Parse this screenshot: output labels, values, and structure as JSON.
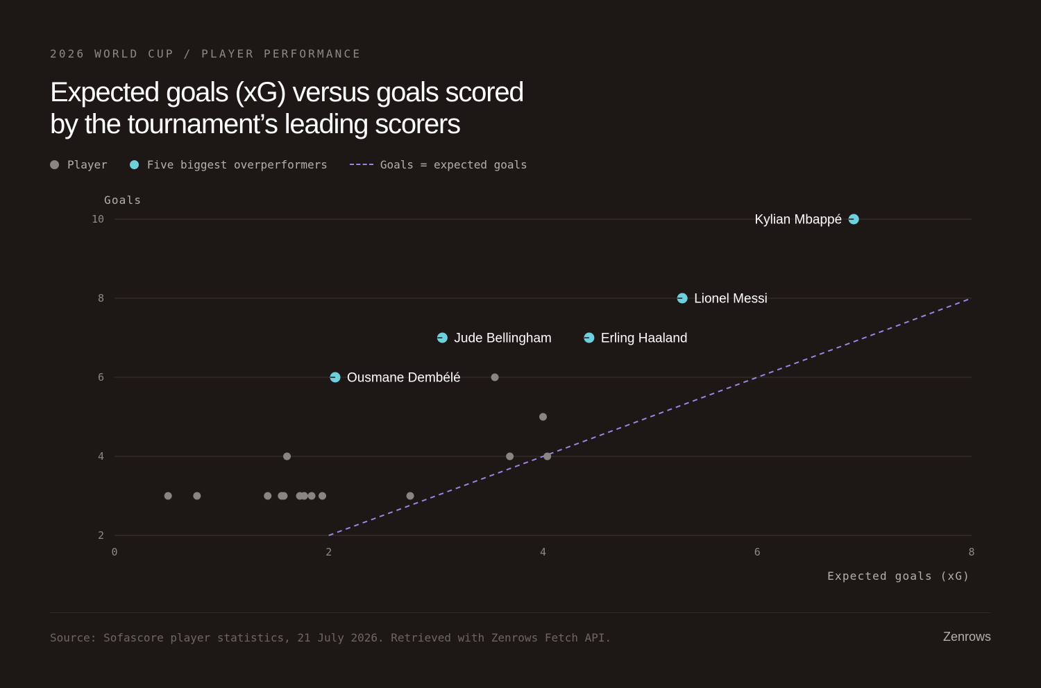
{
  "header": {
    "eyebrow": "2026 WORLD CUP / PLAYER PERFORMANCE",
    "title_line1": "Expected goals (xG) versus goals scored",
    "title_line2": "by the tournament’s leading scorers"
  },
  "legend": {
    "player": "Player",
    "overperformers": "Five biggest overperformers",
    "reference": "Goals = expected goals"
  },
  "colors": {
    "background": "#1d1716",
    "player": "#8a8581",
    "overperformer": "#6fd0dd",
    "reference_line": "#9b86e6",
    "gridline": "#3a3330"
  },
  "chart_data": {
    "type": "scatter",
    "xlabel": "Expected goals (xG)",
    "ylabel": "Goals",
    "xlim": [
      0,
      8
    ],
    "ylim": [
      2,
      10
    ],
    "xticks": [
      0,
      2,
      4,
      6,
      8
    ],
    "yticks": [
      2,
      4,
      6,
      8,
      10
    ],
    "grid": "horizontal",
    "series": [
      {
        "name": "Player",
        "points": [
          {
            "x": 0.5,
            "y": 3
          },
          {
            "x": 0.77,
            "y": 3
          },
          {
            "x": 1.43,
            "y": 3
          },
          {
            "x": 1.56,
            "y": 3
          },
          {
            "x": 1.58,
            "y": 3
          },
          {
            "x": 1.73,
            "y": 3
          },
          {
            "x": 1.77,
            "y": 3
          },
          {
            "x": 1.84,
            "y": 3
          },
          {
            "x": 1.94,
            "y": 3
          },
          {
            "x": 2.76,
            "y": 3
          },
          {
            "x": 1.61,
            "y": 4
          },
          {
            "x": 3.69,
            "y": 4
          },
          {
            "x": 4.04,
            "y": 4
          },
          {
            "x": 4.0,
            "y": 5
          },
          {
            "x": 3.55,
            "y": 6
          }
        ]
      },
      {
        "name": "Five biggest overperformers",
        "points": [
          {
            "label": "Kylian Mbappé",
            "x": 6.9,
            "y": 10,
            "label_side": "left"
          },
          {
            "label": "Lionel Messi",
            "x": 5.3,
            "y": 8,
            "label_side": "right"
          },
          {
            "label": "Jude Bellingham",
            "x": 3.06,
            "y": 7,
            "label_side": "right"
          },
          {
            "label": "Erling Haaland",
            "x": 4.43,
            "y": 7,
            "label_side": "right"
          },
          {
            "label": "Ousmane Dembélé",
            "x": 2.06,
            "y": 6,
            "label_side": "right"
          }
        ]
      },
      {
        "name": "Goals = expected goals",
        "kind": "reference-line",
        "x": [
          2,
          8
        ],
        "y": [
          2,
          8
        ]
      }
    ]
  },
  "footer": {
    "source": "Source: Sofascore player statistics, 21 July 2026. Retrieved with Zenrows Fetch API.",
    "brand": "Zenrows"
  }
}
